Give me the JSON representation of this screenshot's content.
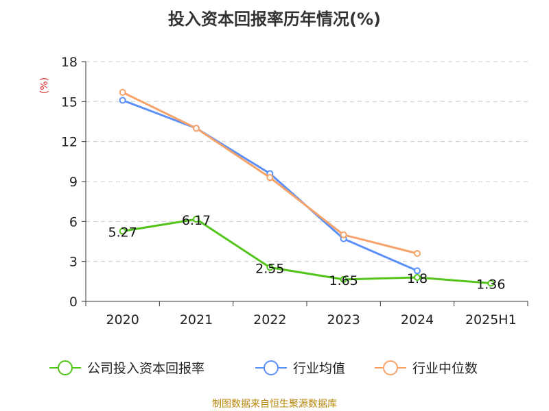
{
  "chart_data": {
    "type": "line",
    "title": "投入资本回报率历年情况(%)",
    "ylabel": "(%)",
    "xlabel": "",
    "categories": [
      "2020",
      "2021",
      "2022",
      "2023",
      "2024",
      "2025H1"
    ],
    "ylim": [
      0,
      18
    ],
    "yticks": [
      0,
      3,
      6,
      9,
      12,
      15,
      18
    ],
    "grid": true,
    "legend_position": "bottom",
    "series": [
      {
        "name": "公司投入资本回报率",
        "color": "#52c41a",
        "values": [
          5.27,
          6.17,
          2.55,
          1.65,
          1.8,
          1.36
        ],
        "labels": [
          "5.27",
          "6.17",
          "2.55",
          "1.65",
          "1.8",
          "1.36"
        ]
      },
      {
        "name": "行业均值",
        "color": "#5b8ff9",
        "values": [
          15.1,
          13.0,
          9.6,
          4.7,
          2.3,
          null
        ]
      },
      {
        "name": "行业中位数",
        "color": "#f6a36a",
        "values": [
          15.7,
          13.0,
          9.3,
          5.0,
          3.6,
          null
        ]
      }
    ]
  },
  "source": "制图数据来自恒生聚源数据库"
}
